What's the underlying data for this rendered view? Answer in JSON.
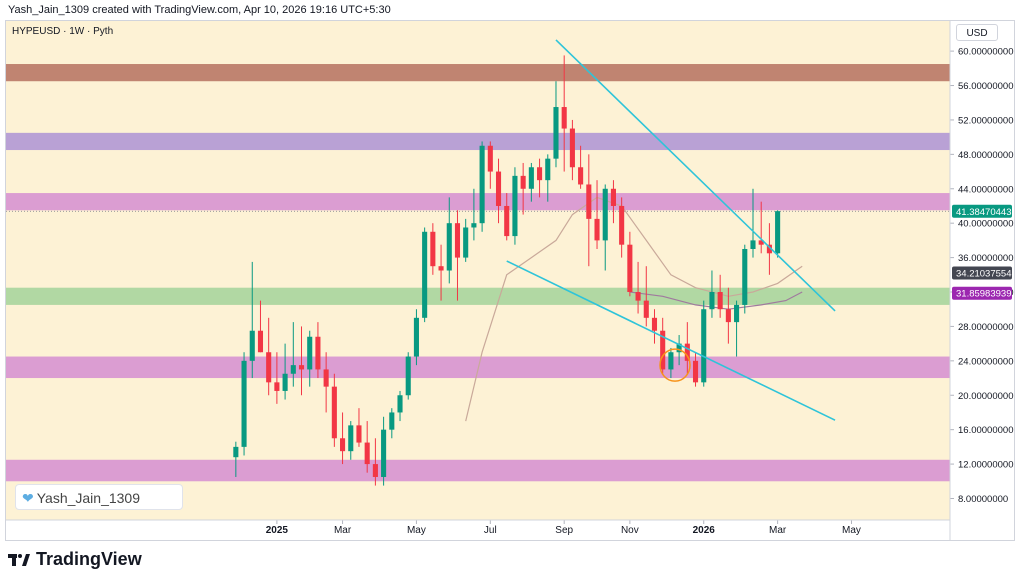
{
  "header": {
    "caption": "Yash_Jain_1309 created with TradingView.com, Apr 10, 2026 19:16 UTC+5:30"
  },
  "symbol": {
    "label": "HYPEUSD · 1W · Pyth"
  },
  "currency": "USD",
  "watermark": {
    "text": "Yash_Jain_1309",
    "icon": "heart-icon"
  },
  "footer": {
    "brand": "TradingView"
  },
  "colors": {
    "background": "#fdf2d5",
    "up": "#089981",
    "down": "#f23645",
    "trendline": "#2ec4d9",
    "ma": "#c9a99a",
    "ma2": "#a07a9e",
    "circle": "#f7931a"
  },
  "chart_data": {
    "type": "candlestick",
    "title": "HYPEUSD · 1W · Pyth",
    "ylim": [
      5.5,
      63.5
    ],
    "y_ticks": [
      "60.00000000",
      "56.00000000",
      "52.00000000",
      "48.00000000",
      "44.00000000",
      "40.00000000",
      "36.00000000",
      "32.00000000",
      "28.00000000",
      "24.00000000",
      "20.00000000",
      "16.00000000",
      "12.00000000",
      "8.00000000"
    ],
    "x_ticks": [
      {
        "label": "2025",
        "week": 5
      },
      {
        "label": "Mar",
        "week": 13
      },
      {
        "label": "May",
        "week": 22
      },
      {
        "label": "Jul",
        "week": 31
      },
      {
        "label": "Sep",
        "week": 40
      },
      {
        "label": "Nov",
        "week": 48
      },
      {
        "label": "2026",
        "week": 57
      },
      {
        "label": "Mar",
        "week": 66
      },
      {
        "label": "May",
        "week": 75
      }
    ],
    "x_range": [
      -28,
      87
    ],
    "candles": [
      [
        12.8,
        14.6,
        10.5,
        14.0
      ],
      [
        14.0,
        25.0,
        13.0,
        24.0
      ],
      [
        24.0,
        35.5,
        22.0,
        27.5
      ],
      [
        27.5,
        31.0,
        25.0,
        25.0
      ],
      [
        25.0,
        29.0,
        20.0,
        21.5
      ],
      [
        21.5,
        25.0,
        19.0,
        20.5
      ],
      [
        20.5,
        26.0,
        19.5,
        22.5
      ],
      [
        22.5,
        28.5,
        21.0,
        23.5
      ],
      [
        23.5,
        28.0,
        20.0,
        23.0
      ],
      [
        23.0,
        27.5,
        21.0,
        26.8
      ],
      [
        26.8,
        28.5,
        22.0,
        23.0
      ],
      [
        23.0,
        25.0,
        18.0,
        21.0
      ],
      [
        21.0,
        22.5,
        14.0,
        15.0
      ],
      [
        15.0,
        18.0,
        12.0,
        13.5
      ],
      [
        13.5,
        17.0,
        12.5,
        16.5
      ],
      [
        16.5,
        18.5,
        14.0,
        14.5
      ],
      [
        14.5,
        17.0,
        11.0,
        12.0
      ],
      [
        12.0,
        15.0,
        9.5,
        10.5
      ],
      [
        10.5,
        17.5,
        9.5,
        16.0
      ],
      [
        16.0,
        18.5,
        15.0,
        18.0
      ],
      [
        18.0,
        20.5,
        17.0,
        20.0
      ],
      [
        20.0,
        25.0,
        19.5,
        24.5
      ],
      [
        24.5,
        30.0,
        23.5,
        29.0
      ],
      [
        29.0,
        39.5,
        28.5,
        39.0
      ],
      [
        39.0,
        40.0,
        34.0,
        35.0
      ],
      [
        35.0,
        37.5,
        31.0,
        34.5
      ],
      [
        34.5,
        43.0,
        33.0,
        40.0
      ],
      [
        40.0,
        41.5,
        31.0,
        36.0
      ],
      [
        36.0,
        40.5,
        35.5,
        39.5
      ],
      [
        39.5,
        44.0,
        38.0,
        40.0
      ],
      [
        40.0,
        49.5,
        39.0,
        49.0
      ],
      [
        49.0,
        49.5,
        44.0,
        46.0
      ],
      [
        46.0,
        47.5,
        40.0,
        42.0
      ],
      [
        42.0,
        43.5,
        38.0,
        38.5
      ],
      [
        38.5,
        46.5,
        37.5,
        45.5
      ],
      [
        45.5,
        47.0,
        41.0,
        44.0
      ],
      [
        44.0,
        47.0,
        42.5,
        46.5
      ],
      [
        46.5,
        47.5,
        43.0,
        45.0
      ],
      [
        45.0,
        48.0,
        42.5,
        47.5
      ],
      [
        47.5,
        56.5,
        46.5,
        53.5
      ],
      [
        53.5,
        59.5,
        46.0,
        51.0
      ],
      [
        51.0,
        52.0,
        45.0,
        46.5
      ],
      [
        46.5,
        49.0,
        44.0,
        44.5
      ],
      [
        44.5,
        48.0,
        35.0,
        40.5
      ],
      [
        40.5,
        45.0,
        37.0,
        38.0
      ],
      [
        38.0,
        44.5,
        34.5,
        44.0
      ],
      [
        44.0,
        45.0,
        40.0,
        42.0
      ],
      [
        42.0,
        43.0,
        36.0,
        37.5
      ],
      [
        37.5,
        39.0,
        31.5,
        32.0
      ],
      [
        32.0,
        35.5,
        29.5,
        31.0
      ],
      [
        31.0,
        35.0,
        28.0,
        29.0
      ],
      [
        29.0,
        30.0,
        26.0,
        27.5
      ],
      [
        27.5,
        29.0,
        22.5,
        23.0
      ],
      [
        23.0,
        25.5,
        22.0,
        25.0
      ],
      [
        25.0,
        27.0,
        23.5,
        26.0
      ],
      [
        26.0,
        28.5,
        22.5,
        24.0
      ],
      [
        24.0,
        25.0,
        21.0,
        21.5
      ],
      [
        21.5,
        31.0,
        21.0,
        30.0
      ],
      [
        30.0,
        34.5,
        29.0,
        32.0
      ],
      [
        32.0,
        34.0,
        29.0,
        30.0
      ],
      [
        30.0,
        32.5,
        26.0,
        28.5
      ],
      [
        28.5,
        31.0,
        24.5,
        30.5
      ],
      [
        30.5,
        37.5,
        29.5,
        37.0
      ],
      [
        37.0,
        44.0,
        36.0,
        38.0
      ],
      [
        38.0,
        42.5,
        36.5,
        37.5
      ],
      [
        37.5,
        40.0,
        34.0,
        36.5
      ],
      [
        36.5,
        41.5,
        36.0,
        41.4
      ]
    ],
    "candle_start_week": 0,
    "horizontal_zones": [
      {
        "name": "zone-58",
        "low": 56.5,
        "high": 58.5,
        "color": "#b5715f"
      },
      {
        "name": "zone-49",
        "low": 48.5,
        "high": 50.5,
        "color": "#ad93d5"
      },
      {
        "name": "zone-42",
        "low": 41.5,
        "high": 43.5,
        "color": "#d58ed1"
      },
      {
        "name": "zone-31",
        "low": 30.5,
        "high": 32.5,
        "color": "#a3d49a"
      },
      {
        "name": "zone-23",
        "low": 22,
        "high": 24.5,
        "color": "#d58ed1"
      },
      {
        "name": "zone-11",
        "low": 10,
        "high": 12.5,
        "color": "#d58ed1"
      }
    ],
    "trendlines": [
      {
        "name": "upper-trendline",
        "x1": 39,
        "y1": 61.3,
        "x2": 73,
        "y2": 29.8
      },
      {
        "name": "lower-trendline",
        "x1": 33,
        "y1": 35.6,
        "x2": 73,
        "y2": 17.1
      }
    ],
    "moving_average": {
      "name": "ma-slow",
      "points": [
        [
          28,
          17
        ],
        [
          30,
          25
        ],
        [
          33,
          34
        ],
        [
          36,
          36
        ],
        [
          39,
          38
        ],
        [
          41,
          41
        ],
        [
          44,
          43
        ],
        [
          47,
          42
        ],
        [
          50,
          38
        ],
        [
          53,
          34
        ],
        [
          56,
          32.5
        ],
        [
          60,
          31.5
        ],
        [
          63,
          32
        ],
        [
          66,
          33
        ],
        [
          69,
          35
        ]
      ]
    },
    "moving_average_2": {
      "name": "ma-fast",
      "points": [
        [
          48,
          32
        ],
        [
          52,
          31.5
        ],
        [
          56,
          30.5
        ],
        [
          60,
          30
        ],
        [
          64,
          30.5
        ],
        [
          67,
          31
        ],
        [
          69,
          32
        ]
      ]
    },
    "price_tags": [
      {
        "name": "price-tag-last",
        "value": 41.38470443,
        "label": "41.38470443",
        "color": "#089981"
      },
      {
        "name": "price-tag-ma",
        "value": 34.21037554,
        "label": "34.21037554",
        "color": "#434651"
      },
      {
        "name": "price-tag-ma2",
        "value": 31.85983939,
        "label": "31.85983939",
        "color": "#9c27b0"
      }
    ],
    "annotation_circle": {
      "name": "support-circle",
      "x": 53.5,
      "y": 23.5
    }
  }
}
